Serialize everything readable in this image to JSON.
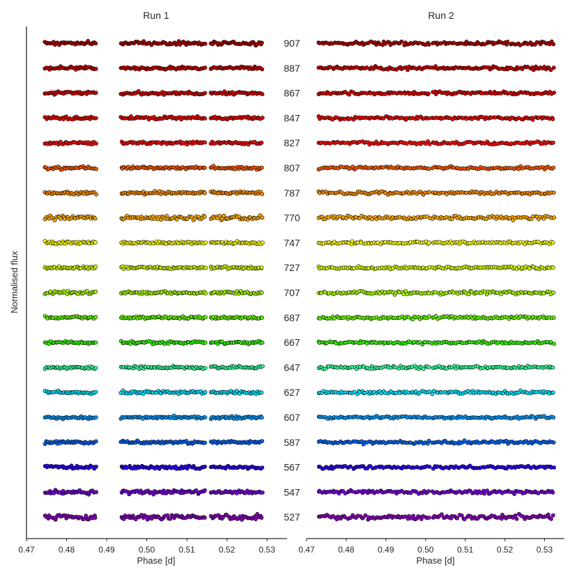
{
  "chart_data": {
    "type": "scatter",
    "ylabel": "Normalised flux",
    "xlabel": "Phase [d]",
    "wavelength_labels": [
      "907",
      "887",
      "867",
      "847",
      "827",
      "807",
      "787",
      "770",
      "747",
      "727",
      "707",
      "687",
      "667",
      "647",
      "627",
      "607",
      "587",
      "567",
      "547",
      "527"
    ],
    "series_colors": [
      "#B00000",
      "#C80000",
      "#DD0000",
      "#EE0800",
      "#FF0D0D",
      "#FF5A00",
      "#FF8A00",
      "#FFAA00",
      "#FFFF00",
      "#D4FF00",
      "#A8FF00",
      "#66FF00",
      "#33FF00",
      "#33FF99",
      "#00E5FF",
      "#0099FF",
      "#0066FF",
      "#2B00FF",
      "#7700DD",
      "#8800BB"
    ],
    "panels": [
      {
        "title": "Run 1",
        "xlim": [
          0.47,
          0.535
        ],
        "xticks": [
          "0.47",
          "0.48",
          "0.49",
          "0.50",
          "0.51",
          "0.52",
          "0.53"
        ],
        "xtick_values": [
          0.47,
          0.48,
          0.49,
          0.5,
          0.51,
          0.52,
          0.53
        ],
        "data_segments": [
          [
            0.4745,
            0.4875
          ],
          [
            0.4935,
            0.5148
          ],
          [
            0.5158,
            0.529
          ]
        ]
      },
      {
        "title": "Run 2",
        "xlim": [
          0.47,
          0.535
        ],
        "xticks": [
          "0.47",
          "0.48",
          "0.49",
          "0.50",
          "0.51",
          "0.52",
          "0.53"
        ],
        "xtick_values": [
          0.47,
          0.48,
          0.49,
          0.5,
          0.51,
          0.52,
          0.53
        ],
        "data_segments": [
          [
            0.4728,
            0.5012
          ],
          [
            0.5016,
            0.5325
          ]
        ]
      }
    ],
    "scatter_amplitude": [
      0.9,
      0.85,
      0.8,
      0.8,
      0.75,
      0.8,
      0.8,
      1.1,
      0.7,
      0.7,
      0.85,
      0.75,
      0.7,
      0.75,
      0.8,
      0.75,
      0.8,
      0.85,
      1.0,
      1.3
    ],
    "grid": false,
    "legend": "none"
  }
}
